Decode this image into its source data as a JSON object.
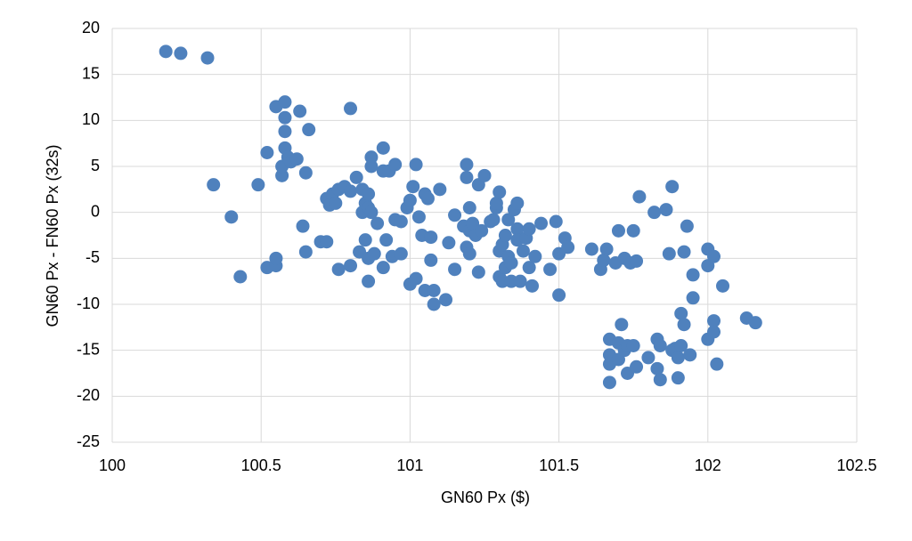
{
  "chart_data": {
    "type": "scatter",
    "x_label": "GN60 Px ($)",
    "y_label": "GN60 Px - FN60 Px (32s)",
    "color": "#4f81bd",
    "grid": true,
    "xlim": [
      100,
      102.5
    ],
    "xticks": [
      100,
      100.5,
      101,
      101.5,
      102,
      102.5
    ],
    "ylim": [
      -25,
      20
    ],
    "yticks": [
      20,
      15,
      10,
      5,
      0,
      -5,
      -10,
      -15,
      -20,
      -25
    ],
    "x": [
      100.18,
      100.23,
      100.32,
      100.34,
      100.4,
      100.43,
      100.49,
      100.52,
      100.52,
      100.55,
      100.55,
      100.55,
      100.57,
      100.57,
      100.58,
      100.58,
      100.58,
      100.58,
      100.59,
      100.6,
      100.62,
      100.63,
      100.64,
      100.65,
      100.65,
      100.66,
      100.7,
      100.72,
      100.72,
      100.73,
      100.74,
      100.75,
      100.76,
      100.76,
      100.78,
      100.8,
      100.8,
      100.8,
      100.82,
      100.83,
      100.84,
      100.84,
      100.85,
      100.85,
      100.86,
      100.86,
      100.86,
      100.86,
      100.87,
      100.87,
      100.87,
      100.88,
      100.89,
      100.91,
      100.91,
      100.91,
      100.92,
      100.93,
      100.94,
      100.95,
      100.95,
      100.97,
      100.97,
      100.99,
      101.0,
      101.0,
      101.01,
      101.02,
      101.02,
      101.03,
      101.04,
      101.05,
      101.05,
      101.06,
      101.07,
      101.07,
      101.08,
      101.08,
      101.1,
      101.12,
      101.13,
      101.15,
      101.15,
      101.18,
      101.19,
      101.19,
      101.19,
      101.2,
      101.2,
      101.2,
      101.21,
      101.22,
      101.23,
      101.23,
      101.24,
      101.25,
      101.27,
      101.28,
      101.29,
      101.29,
      101.3,
      101.3,
      101.3,
      101.31,
      101.31,
      101.32,
      101.32,
      101.33,
      101.33,
      101.34,
      101.34,
      101.35,
      101.36,
      101.36,
      101.36,
      101.37,
      101.38,
      101.39,
      101.4,
      101.4,
      101.41,
      101.42,
      101.44,
      101.47,
      101.49,
      101.5,
      101.5,
      101.52,
      101.53,
      101.61,
      101.64,
      101.65,
      101.66,
      101.67,
      101.67,
      101.67,
      101.67,
      101.69,
      101.7,
      101.7,
      101.7,
      101.71,
      101.72,
      101.72,
      101.73,
      101.73,
      101.74,
      101.75,
      101.75,
      101.76,
      101.76,
      101.77,
      101.8,
      101.82,
      101.83,
      101.83,
      101.84,
      101.84,
      101.86,
      101.87,
      101.88,
      101.88,
      101.89,
      101.9,
      101.9,
      101.91,
      101.91,
      101.92,
      101.92,
      101.93,
      101.94,
      101.95,
      101.95,
      102.0,
      102.0,
      102.0,
      102.02,
      102.02,
      102.02,
      102.03,
      102.05,
      102.13,
      102.16
    ],
    "values": [
      17.5,
      17.3,
      16.8,
      3,
      -0.5,
      -7,
      3,
      6.5,
      -6,
      -5.8,
      -5,
      11.5,
      4,
      5,
      10.3,
      12,
      8.8,
      7,
      6,
      5.5,
      5.8,
      11,
      -1.5,
      4.3,
      -4.3,
      9,
      -3.2,
      -3.2,
      1.5,
      0.8,
      2,
      1,
      2.5,
      -6.2,
      2.8,
      2.3,
      -5.8,
      11.3,
      3.8,
      -4.3,
      0,
      2.5,
      -3,
      1,
      2,
      -7.5,
      -5,
      0.5,
      5,
      6,
      0,
      -4.5,
      -1.2,
      4.5,
      7,
      -6,
      -3,
      4.5,
      -4.8,
      5.2,
      -0.8,
      -4.5,
      -1,
      0.5,
      -7.8,
      1.3,
      2.8,
      5.2,
      -7.2,
      -0.5,
      -2.5,
      -8.5,
      2,
      1.5,
      -2.7,
      -5.2,
      -10,
      -8.5,
      2.5,
      -9.5,
      -3.3,
      -6.2,
      -0.3,
      -1.5,
      -3.8,
      3.8,
      5.2,
      -2,
      -4.5,
      0.5,
      -1.2,
      -2.5,
      -6.5,
      3,
      -2,
      4,
      -1,
      -0.8,
      0.5,
      1,
      2.2,
      -4.2,
      -7,
      -3.5,
      -7.5,
      -2.5,
      -6,
      -4.8,
      -0.8,
      -5.5,
      -7.5,
      0.3,
      -1.8,
      -3,
      1,
      -7.5,
      -4.2,
      -2.8,
      -1.8,
      -6,
      -8,
      -4.8,
      -1.2,
      -6.2,
      -1,
      -9,
      -4.5,
      -2.8,
      -3.8,
      -4,
      -6.2,
      -5.2,
      -4,
      -13.8,
      -15.5,
      -16.5,
      -18.5,
      -5.5,
      -2,
      -14.2,
      -16,
      -12.2,
      -5,
      -15,
      -14.5,
      -17.5,
      -5.5,
      -14.5,
      -2,
      -5.3,
      -16.8,
      1.7,
      -15.8,
      0,
      -13.8,
      -17,
      -14.5,
      -18.2,
      0.3,
      -4.5,
      2.8,
      -15,
      -14.8,
      -15.8,
      -18,
      -11,
      -14.5,
      -12.2,
      -4.3,
      -1.5,
      -15.5,
      -6.8,
      -9.3,
      -4,
      -5.8,
      -13.8,
      -4.8,
      -11.8,
      -13,
      -16.5,
      -8,
      -11.5,
      -12
    ]
  }
}
